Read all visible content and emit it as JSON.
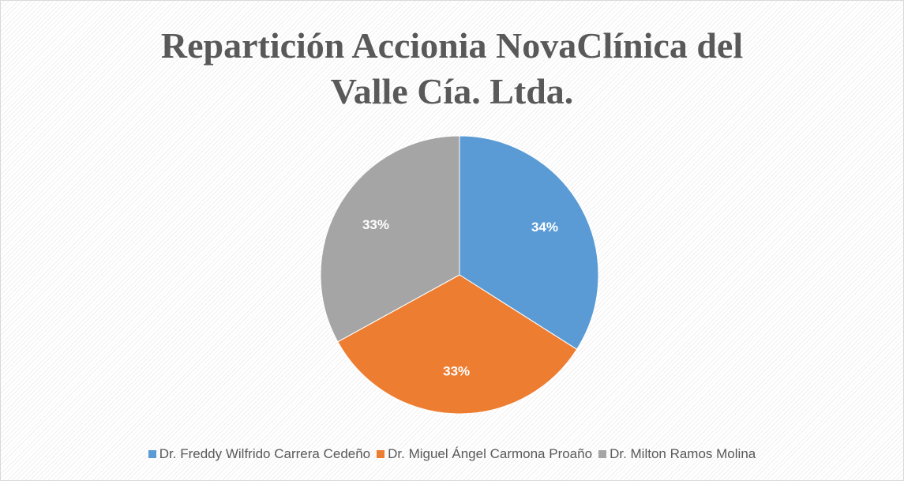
{
  "chart_data": {
    "type": "pie",
    "title": "Repartición Accionia NovaClínica del Valle Cía. Ltda.",
    "categories": [
      "Dr. Freddy Wilfrido Carrera Cedeño",
      "Dr. Miguel Ángel Carmona Proaño",
      "Dr. Milton Ramos Molina"
    ],
    "values": [
      34,
      33,
      33
    ],
    "value_labels": [
      "34%",
      "33%",
      "33%"
    ],
    "colors": [
      "#5b9bd5",
      "#ed7d31",
      "#a5a5a5"
    ],
    "legend": "bottom"
  }
}
